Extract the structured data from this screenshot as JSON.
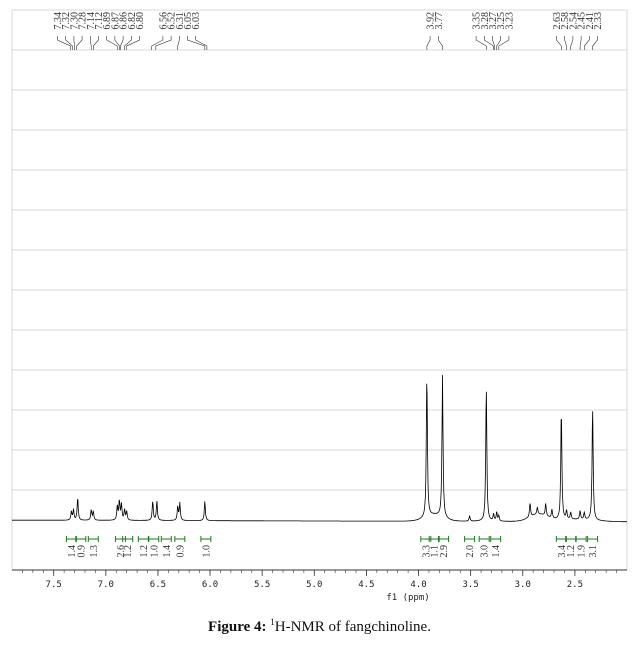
{
  "caption": {
    "label": "Figure 4:",
    "sup": "1",
    "text": "H-NMR of fangchinoline."
  },
  "chart_data": {
    "type": "line",
    "xlabel": "f1 (ppm)",
    "xlim": [
      7.9,
      2.0
    ],
    "x_ticks": [
      "7.5",
      "7.0",
      "6.5",
      "6.0",
      "5.5",
      "5.0",
      "4.5",
      "4.0",
      "3.5",
      "3.0",
      "2.5"
    ],
    "x_tick_values": [
      7.5,
      7.0,
      6.5,
      6.0,
      5.5,
      5.0,
      4.5,
      4.0,
      3.5,
      3.0,
      2.5
    ],
    "peak_labels": [
      "7.34",
      "7.32",
      "7.30",
      "7.28",
      "7.14",
      "7.12",
      "6.89",
      "6.87",
      "6.86",
      "6.82",
      "6.80",
      "6.56",
      "6.52",
      "6.31",
      "6.05",
      "6.03",
      "3.92",
      "3.77",
      "3.35",
      "3.28",
      "3.27",
      "3.25",
      "3.23",
      "2.63",
      "2.58",
      "2.54",
      "2.45",
      "2.41",
      "2.33"
    ],
    "integrals": [
      {
        "label": "1.4",
        "x": 7.33
      },
      {
        "label": "0.9",
        "x": 7.24
      },
      {
        "label": "1.3",
        "x": 7.12
      },
      {
        "label": "2.6",
        "x": 6.86
      },
      {
        "label": "1.2",
        "x": 6.79
      },
      {
        "label": "1.2",
        "x": 6.64
      },
      {
        "label": "1.0",
        "x": 6.54
      },
      {
        "label": "1.4",
        "x": 6.42
      },
      {
        "label": "0.9",
        "x": 6.29
      },
      {
        "label": "1.0",
        "x": 6.04
      },
      {
        "label": "3.3",
        "x": 3.93
      },
      {
        "label": "1.1",
        "x": 3.85
      },
      {
        "label": "2.9",
        "x": 3.76
      },
      {
        "label": "2.0",
        "x": 3.51
      },
      {
        "label": "3.0",
        "x": 3.37
      },
      {
        "label": "1.4",
        "x": 3.26
      },
      {
        "label": "3.4",
        "x": 2.63
      },
      {
        "label": "1.2",
        "x": 2.54
      },
      {
        "label": "1.9",
        "x": 2.44
      },
      {
        "label": "3.1",
        "x": 2.33
      }
    ],
    "peaks": [
      {
        "x": 7.33,
        "y": 0.05
      },
      {
        "x": 7.31,
        "y": 0.06
      },
      {
        "x": 7.27,
        "y": 0.13
      },
      {
        "x": 7.14,
        "y": 0.06
      },
      {
        "x": 7.12,
        "y": 0.05
      },
      {
        "x": 6.89,
        "y": 0.08
      },
      {
        "x": 6.87,
        "y": 0.11
      },
      {
        "x": 6.85,
        "y": 0.09
      },
      {
        "x": 6.82,
        "y": 0.06
      },
      {
        "x": 6.8,
        "y": 0.05
      },
      {
        "x": 6.55,
        "y": 0.11
      },
      {
        "x": 6.51,
        "y": 0.11
      },
      {
        "x": 6.31,
        "y": 0.08
      },
      {
        "x": 6.29,
        "y": 0.1
      },
      {
        "x": 6.05,
        "y": 0.11
      },
      {
        "x": 3.92,
        "y": 0.82
      },
      {
        "x": 3.77,
        "y": 0.81
      },
      {
        "x": 3.51,
        "y": 0.03
      },
      {
        "x": 3.35,
        "y": 0.78
      },
      {
        "x": 3.28,
        "y": 0.04
      },
      {
        "x": 3.25,
        "y": 0.05
      },
      {
        "x": 3.23,
        "y": 0.03
      },
      {
        "x": 2.93,
        "y": 0.08
      },
      {
        "x": 2.86,
        "y": 0.04
      },
      {
        "x": 2.78,
        "y": 0.07
      },
      {
        "x": 2.72,
        "y": 0.05
      },
      {
        "x": 2.63,
        "y": 0.64
      },
      {
        "x": 2.58,
        "y": 0.05
      },
      {
        "x": 2.54,
        "y": 0.04
      },
      {
        "x": 2.45,
        "y": 0.05
      },
      {
        "x": 2.41,
        "y": 0.04
      },
      {
        "x": 2.33,
        "y": 0.65
      }
    ],
    "colors": {
      "spectrum": "#000000",
      "integral": "#1a7a1a",
      "grid": "#d9d9d9",
      "axis": "#333333"
    },
    "grid": true
  }
}
